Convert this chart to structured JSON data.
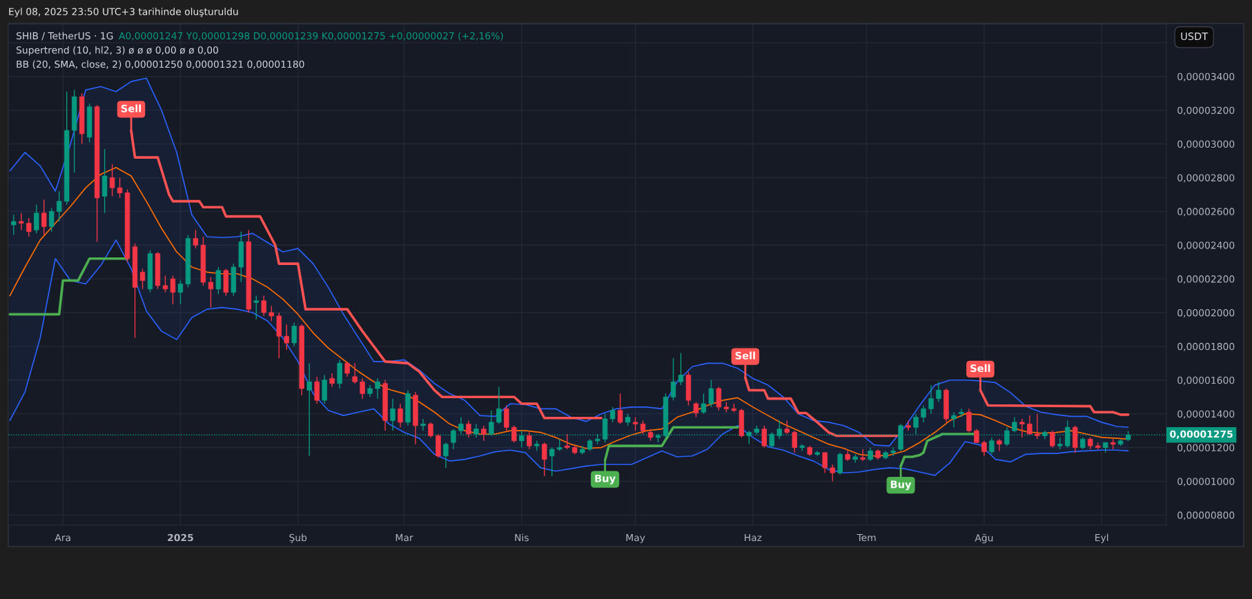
{
  "chart_data": {
    "type": "candlestick",
    "title": "SHIB / TetherUS · 1G",
    "subtitle": "A0,00001247 Y0,00001298 D0,00001239 K0,00001275 +0,00000027 (+2,16%)",
    "ylabel": "USDT",
    "x": [
      "2024-11-18",
      "2024-11-20",
      "2024-11-22",
      "2024-11-24",
      "2024-11-26",
      "2024-11-28",
      "2024-11-30",
      "2024-12-02",
      "2024-12-04",
      "2024-12-06",
      "2024-12-08",
      "2024-12-10",
      "2024-12-12",
      "2024-12-14",
      "2024-12-16",
      "2024-12-18",
      "2024-12-20",
      "2024-12-22",
      "2024-12-24",
      "2024-12-26",
      "2024-12-28",
      "2024-12-30",
      "2025-01-01",
      "2025-01-03",
      "2025-01-05",
      "2025-01-07",
      "2025-01-09",
      "2025-01-11",
      "2025-01-13",
      "2025-01-15",
      "2025-01-17",
      "2025-01-19",
      "2025-01-21",
      "2025-01-23",
      "2025-01-25",
      "2025-01-27",
      "2025-01-29",
      "2025-01-31",
      "2025-02-02",
      "2025-02-04",
      "2025-02-06",
      "2025-02-08",
      "2025-02-10",
      "2025-02-12",
      "2025-02-14",
      "2025-02-16",
      "2025-02-18",
      "2025-02-20",
      "2025-02-22",
      "2025-02-24",
      "2025-02-26",
      "2025-02-28",
      "2025-03-02",
      "2025-03-04",
      "2025-03-06",
      "2025-03-08",
      "2025-03-10",
      "2025-03-12",
      "2025-03-14",
      "2025-03-16",
      "2025-03-18",
      "2025-03-20",
      "2025-03-22",
      "2025-03-24",
      "2025-03-26",
      "2025-03-28",
      "2025-03-30",
      "2025-04-01",
      "2025-04-03",
      "2025-04-05",
      "2025-04-07",
      "2025-04-09",
      "2025-04-11",
      "2025-04-13",
      "2025-04-15",
      "2025-04-17",
      "2025-04-19",
      "2025-04-21",
      "2025-04-23",
      "2025-04-25",
      "2025-04-27",
      "2025-04-29",
      "2025-05-01",
      "2025-05-03",
      "2025-05-05",
      "2025-05-07",
      "2025-05-09",
      "2025-05-11",
      "2025-05-13",
      "2025-05-15",
      "2025-05-17",
      "2025-05-19",
      "2025-05-21",
      "2025-05-23",
      "2025-05-25",
      "2025-05-27",
      "2025-05-29",
      "2025-05-31",
      "2025-06-02",
      "2025-06-04",
      "2025-06-06",
      "2025-06-08",
      "2025-06-10",
      "2025-06-12",
      "2025-06-14",
      "2025-06-16",
      "2025-06-18",
      "2025-06-20",
      "2025-06-22",
      "2025-06-24",
      "2025-06-26",
      "2025-06-28",
      "2025-06-30",
      "2025-07-02",
      "2025-07-04",
      "2025-07-06",
      "2025-07-08",
      "2025-07-10",
      "2025-07-12",
      "2025-07-14",
      "2025-07-16",
      "2025-07-18",
      "2025-07-20",
      "2025-07-22",
      "2025-07-24",
      "2025-07-26",
      "2025-07-28",
      "2025-07-30",
      "2025-08-01",
      "2025-08-03",
      "2025-08-05",
      "2025-08-07",
      "2025-08-09",
      "2025-08-11",
      "2025-08-13",
      "2025-08-15",
      "2025-08-17",
      "2025-08-19",
      "2025-08-21",
      "2025-08-23",
      "2025-08-25",
      "2025-08-27",
      "2025-08-29",
      "2025-08-31",
      "2025-09-02",
      "2025-09-04",
      "2025-09-06",
      "2025-09-08"
    ],
    "ohlc": [
      [
        2.52e-05,
        2.58e-05,
        2.46e-05,
        2.54e-05
      ],
      [
        2.54e-05,
        2.59e-05,
        2.49e-05,
        2.53e-05
      ],
      [
        2.53e-05,
        2.56e-05,
        2.45e-05,
        2.48e-05
      ],
      [
        2.49e-05,
        2.64e-05,
        2.47e-05,
        2.59e-05
      ],
      [
        2.59e-05,
        2.67e-05,
        2.46e-05,
        2.51e-05
      ],
      [
        2.51e-05,
        2.62e-05,
        2.48e-05,
        2.6e-05
      ],
      [
        2.6e-05,
        2.72e-05,
        2.54e-05,
        2.66e-05
      ],
      [
        2.66e-05,
        3.31e-05,
        2.64e-05,
        3.08e-05
      ],
      [
        3.08e-05,
        3.32e-05,
        2.83e-05,
        3.28e-05
      ],
      [
        3.28e-05,
        3.3e-05,
        3e-05,
        3.06e-05
      ],
      [
        3.04e-05,
        3.24e-05,
        3.01e-05,
        3.22e-05
      ],
      [
        3.22e-05,
        3.23e-05,
        2.42e-05,
        2.68e-05
      ],
      [
        2.69e-05,
        2.97e-05,
        2.59e-05,
        2.81e-05
      ],
      [
        2.8e-05,
        2.88e-05,
        2.69e-05,
        2.74e-05
      ],
      [
        2.74e-05,
        2.8e-05,
        2.68e-05,
        2.71e-05
      ],
      [
        2.71e-05,
        2.73e-05,
        2.3e-05,
        2.32e-05
      ],
      [
        2.39e-05,
        2.41e-05,
        1.85e-05,
        2.15e-05
      ],
      [
        2.24e-05,
        2.26e-05,
        2.14e-05,
        2.19e-05
      ],
      [
        2.14e-05,
        2.37e-05,
        2.12e-05,
        2.35e-05
      ],
      [
        2.35e-05,
        2.36e-05,
        2.14e-05,
        2.16e-05
      ],
      [
        2.16e-05,
        2.22e-05,
        2.12e-05,
        2.14e-05
      ],
      [
        2.2e-05,
        2.22e-05,
        2.05e-05,
        2.12e-05
      ],
      [
        2.12e-05,
        2.19e-05,
        2.05e-05,
        2.17e-05
      ],
      [
        2.17e-05,
        2.46e-05,
        2.15e-05,
        2.44e-05
      ],
      [
        2.44e-05,
        2.49e-05,
        2.38e-05,
        2.4e-05
      ],
      [
        2.4e-05,
        2.45e-05,
        2.16e-05,
        2.18e-05
      ],
      [
        2.18e-05,
        2.21e-05,
        2.03e-05,
        2.14e-05
      ],
      [
        2.14e-05,
        2.27e-05,
        2.11e-05,
        2.25e-05
      ],
      [
        2.25e-05,
        2.26e-05,
        2.1e-05,
        2.12e-05
      ],
      [
        2.12e-05,
        2.29e-05,
        2.1e-05,
        2.27e-05
      ],
      [
        2.27e-05,
        2.48e-05,
        2.18e-05,
        2.42e-05
      ],
      [
        2.42e-05,
        2.49e-05,
        2e-05,
        2.02e-05
      ],
      [
        2.06e-05,
        2.1e-05,
        1.96e-05,
        2.07e-05
      ],
      [
        2.07e-05,
        2.1e-05,
        1.98e-05,
        2e-05
      ],
      [
        2e-05,
        2.04e-05,
        1.95e-05,
        1.98e-05
      ],
      [
        1.98e-05,
        2e-05,
        1.73e-05,
        1.86e-05
      ],
      [
        1.86e-05,
        1.93e-05,
        1.78e-05,
        1.82e-05
      ],
      [
        1.82e-05,
        1.94e-05,
        1.8e-05,
        1.92e-05
      ],
      [
        1.92e-05,
        1.93e-05,
        1.51e-05,
        1.55e-05
      ],
      [
        1.54e-05,
        1.7e-05,
        1.15e-05,
        1.59e-05
      ],
      [
        1.59e-05,
        1.62e-05,
        1.46e-05,
        1.48e-05
      ],
      [
        1.48e-05,
        1.63e-05,
        1.46e-05,
        1.6e-05
      ],
      [
        1.61e-05,
        1.64e-05,
        1.56e-05,
        1.58e-05
      ],
      [
        1.58e-05,
        1.72e-05,
        1.55e-05,
        1.7e-05
      ],
      [
        1.7e-05,
        1.71e-05,
        1.62e-05,
        1.64e-05
      ],
      [
        1.62e-05,
        1.7e-05,
        1.58e-05,
        1.59e-05
      ],
      [
        1.59e-05,
        1.61e-05,
        1.49e-05,
        1.52e-05
      ],
      [
        1.52e-05,
        1.57e-05,
        1.5e-05,
        1.55e-05
      ],
      [
        1.55e-05,
        1.61e-05,
        1.49e-05,
        1.59e-05
      ],
      [
        1.58e-05,
        1.6e-05,
        1.3e-05,
        1.36e-05
      ],
      [
        1.36e-05,
        1.49e-05,
        1.3e-05,
        1.43e-05
      ],
      [
        1.43e-05,
        1.46e-05,
        1.32e-05,
        1.35e-05
      ],
      [
        1.35e-05,
        1.54e-05,
        1.33e-05,
        1.52e-05
      ],
      [
        1.51e-05,
        1.53e-05,
        1.22e-05,
        1.33e-05
      ],
      [
        1.33e-05,
        1.37e-05,
        1.3e-05,
        1.34e-05
      ],
      [
        1.34e-05,
        1.35e-05,
        1.26e-05,
        1.27e-05
      ],
      [
        1.27e-05,
        1.28e-05,
        1.14e-05,
        1.15e-05
      ],
      [
        1.15e-05,
        1.23e-05,
        1.08e-05,
        1.22e-05
      ],
      [
        1.23e-05,
        1.31e-05,
        1.19e-05,
        1.3e-05
      ],
      [
        1.3e-05,
        1.38e-05,
        1.28e-05,
        1.34e-05
      ],
      [
        1.34e-05,
        1.36e-05,
        1.26e-05,
        1.28e-05
      ],
      [
        1.28e-05,
        1.34e-05,
        1.26e-05,
        1.31e-05
      ],
      [
        1.31e-05,
        1.33e-05,
        1.24e-05,
        1.28e-05
      ],
      [
        1.28e-05,
        1.42e-05,
        1.27e-05,
        1.35e-05
      ],
      [
        1.35e-05,
        1.56e-05,
        1.34e-05,
        1.43e-05
      ],
      [
        1.43e-05,
        1.45e-05,
        1.3e-05,
        1.32e-05
      ],
      [
        1.32e-05,
        1.33e-05,
        1.23e-05,
        1.24e-05
      ],
      [
        1.24e-05,
        1.3e-05,
        1.2e-05,
        1.27e-05
      ],
      [
        1.27e-05,
        1.29e-05,
        1.19e-05,
        1.21e-05
      ],
      [
        1.21e-05,
        1.24e-05,
        1.18e-05,
        1.22e-05
      ],
      [
        1.22e-05,
        1.23e-05,
        1.03e-05,
        1.13e-05
      ],
      [
        1.15e-05,
        1.2e-05,
        1.03e-05,
        1.19e-05
      ],
      [
        1.19e-05,
        1.25e-05,
        1.18e-05,
        1.2e-05
      ],
      [
        1.21e-05,
        1.28e-05,
        1.19e-05,
        1.2e-05
      ],
      [
        1.2e-05,
        1.21e-05,
        1.16e-05,
        1.17e-05
      ],
      [
        1.17e-05,
        1.21e-05,
        1.16e-05,
        1.19e-05
      ],
      [
        1.19e-05,
        1.25e-05,
        1.18e-05,
        1.24e-05
      ],
      [
        1.24e-05,
        1.28e-05,
        1.22e-05,
        1.25e-05
      ],
      [
        1.25e-05,
        1.4e-05,
        1.23e-05,
        1.37e-05
      ],
      [
        1.37e-05,
        1.44e-05,
        1.35e-05,
        1.42e-05
      ],
      [
        1.42e-05,
        1.52e-05,
        1.34e-05,
        1.35e-05
      ],
      [
        1.35e-05,
        1.4e-05,
        1.33e-05,
        1.38e-05
      ],
      [
        1.35e-05,
        1.38e-05,
        1.3e-05,
        1.34e-05
      ],
      [
        1.34e-05,
        1.36e-05,
        1.28e-05,
        1.3e-05
      ],
      [
        1.29e-05,
        1.31e-05,
        1.24e-05,
        1.26e-05
      ],
      [
        1.26e-05,
        1.28e-05,
        1.23e-05,
        1.27e-05
      ],
      [
        1.27e-05,
        1.52e-05,
        1.26e-05,
        1.5e-05
      ],
      [
        1.5e-05,
        1.73e-05,
        1.48e-05,
        1.59e-05
      ],
      [
        1.59e-05,
        1.76e-05,
        1.57e-05,
        1.63e-05
      ],
      [
        1.63e-05,
        1.65e-05,
        1.45e-05,
        1.48e-05
      ],
      [
        1.46e-05,
        1.47e-05,
        1.38e-05,
        1.405e-05
      ],
      [
        1.41e-05,
        1.52e-05,
        1.4e-05,
        1.46e-05
      ],
      [
        1.46e-05,
        1.6e-05,
        1.44e-05,
        1.55e-05
      ],
      [
        1.55e-05,
        1.56e-05,
        1.42e-05,
        1.44e-05
      ],
      [
        1.44e-05,
        1.47e-05,
        1.41e-05,
        1.43e-05
      ],
      [
        1.43e-05,
        1.46e-05,
        1.41e-05,
        1.42e-05
      ],
      [
        1.42e-05,
        1.43e-05,
        1.26e-05,
        1.27e-05
      ],
      [
        1.27e-05,
        1.3e-05,
        1.22e-05,
        1.29e-05
      ],
      [
        1.29e-05,
        1.33e-05,
        1.28e-05,
        1.31e-05
      ],
      [
        1.31e-05,
        1.33e-05,
        1.2e-05,
        1.21e-05
      ],
      [
        1.21e-05,
        1.29e-05,
        1.2e-05,
        1.28e-05
      ],
      [
        1.27e-05,
        1.36e-05,
        1.25e-05,
        1.31e-05
      ],
      [
        1.31e-05,
        1.36e-05,
        1.28e-05,
        1.29e-05
      ],
      [
        1.29e-05,
        1.3e-05,
        1.17e-05,
        1.2e-05
      ],
      [
        1.2e-05,
        1.22e-05,
        1.18e-05,
        1.21e-05
      ],
      [
        1.2e-05,
        1.21e-05,
        1.15e-05,
        1.16e-05
      ],
      [
        1.16e-05,
        1.18e-05,
        1.15e-05,
        1.17e-05
      ],
      [
        1.17e-05,
        1.17e-05,
        1.05e-05,
        1.08e-05
      ],
      [
        1.08e-05,
        1.1e-05,
        1e-05,
        1.05e-05
      ],
      [
        1.05e-05,
        1.17e-05,
        1.04e-05,
        1.16e-05
      ],
      [
        1.16e-05,
        1.18e-05,
        1.12e-05,
        1.13e-05
      ],
      [
        1.13e-05,
        1.16e-05,
        1.11e-05,
        1.145e-05
      ],
      [
        1.14e-05,
        1.19e-05,
        1.12e-05,
        1.13e-05
      ],
      [
        1.13e-05,
        1.2e-05,
        1.12e-05,
        1.18e-05
      ],
      [
        1.18e-05,
        1.19e-05,
        1.13e-05,
        1.14e-05
      ],
      [
        1.14e-05,
        1.18e-05,
        1.13e-05,
        1.17e-05
      ],
      [
        1.17e-05,
        1.2e-05,
        1.15e-05,
        1.18e-05
      ],
      [
        1.19e-05,
        1.34e-05,
        1.18e-05,
        1.33e-05
      ],
      [
        1.33e-05,
        1.36e-05,
        1.3e-05,
        1.32e-05
      ],
      [
        1.32e-05,
        1.4e-05,
        1.28e-05,
        1.38e-05
      ],
      [
        1.38e-05,
        1.45e-05,
        1.35e-05,
        1.43e-05
      ],
      [
        1.43e-05,
        1.57e-05,
        1.4e-05,
        1.49e-05
      ],
      [
        1.49e-05,
        1.59e-05,
        1.47e-05,
        1.54e-05
      ],
      [
        1.54e-05,
        1.55e-05,
        1.35e-05,
        1.37e-05
      ],
      [
        1.37e-05,
        1.41e-05,
        1.32e-05,
        1.39e-05
      ],
      [
        1.4e-05,
        1.43e-05,
        1.38e-05,
        1.41e-05
      ],
      [
        1.41e-05,
        1.43e-05,
        1.29e-05,
        1.3e-05
      ],
      [
        1.3e-05,
        1.31e-05,
        1.23e-05,
        1.23e-05
      ],
      [
        1.23e-05,
        1.24e-05,
        1.15e-05,
        1.175e-05
      ],
      [
        1.175e-05,
        1.26e-05,
        1.16e-05,
        1.24e-05
      ],
      [
        1.24e-05,
        1.25e-05,
        1.18e-05,
        1.22e-05
      ],
      [
        1.22e-05,
        1.32e-05,
        1.21e-05,
        1.3e-05
      ],
      [
        1.3e-05,
        1.38e-05,
        1.29e-05,
        1.35e-05
      ],
      [
        1.35e-05,
        1.37e-05,
        1.26e-05,
        1.34e-05
      ],
      [
        1.34e-05,
        1.39e-05,
        1.28e-05,
        1.28e-05
      ],
      [
        1.28e-05,
        1.4e-05,
        1.25e-05,
        1.27e-05
      ],
      [
        1.27e-05,
        1.3e-05,
        1.25e-05,
        1.29e-05
      ],
      [
        1.29e-05,
        1.3e-05,
        1.2e-05,
        1.21e-05
      ],
      [
        1.21e-05,
        1.26e-05,
        1.19e-05,
        1.22e-05
      ],
      [
        1.21e-05,
        1.36e-05,
        1.2e-05,
        1.32e-05
      ],
      [
        1.32e-05,
        1.33e-05,
        1.17e-05,
        1.2e-05
      ],
      [
        1.2e-05,
        1.26e-05,
        1.19e-05,
        1.25e-05
      ],
      [
        1.25e-05,
        1.26e-05,
        1.19e-05,
        1.21e-05
      ],
      [
        1.21e-05,
        1.23e-05,
        1.19e-05,
        1.2e-05
      ],
      [
        1.2e-05,
        1.23e-05,
        1.17e-05,
        1.23e-05
      ],
      [
        1.23e-05,
        1.25e-05,
        1.19e-05,
        1.22e-05
      ],
      [
        1.22e-05,
        1.25e-05,
        1.21e-05,
        1.24e-05
      ],
      [
        1.247e-05,
        1.298e-05,
        1.239e-05,
        1.275e-05
      ]
    ],
    "series": [
      {
        "type": "line",
        "color": "#ff6d00",
        "x": [
          "2024-11-17",
          "2024-11-21",
          "2024-11-25",
          "2024-11-29",
          "2024-12-03",
          "2024-12-07",
          "2024-12-11",
          "2024-12-15",
          "2024-12-19",
          "2024-12-23",
          "2024-12-27",
          "2024-12-31",
          "2025-01-04",
          "2025-01-08",
          "2025-01-12",
          "2025-01-16",
          "2025-01-20",
          "2025-01-24",
          "2025-01-28",
          "2025-02-01",
          "2025-02-05",
          "2025-02-09",
          "2025-02-13",
          "2025-02-17",
          "2025-02-21",
          "2025-02-25",
          "2025-03-01",
          "2025-03-05",
          "2025-03-09",
          "2025-03-13",
          "2025-03-17",
          "2025-03-21",
          "2025-03-25",
          "2025-03-29",
          "2025-04-02",
          "2025-04-06",
          "2025-04-10",
          "2025-04-14",
          "2025-04-18",
          "2025-04-22",
          "2025-04-26",
          "2025-04-30",
          "2025-05-04",
          "2025-05-08",
          "2025-05-12",
          "2025-05-16",
          "2025-05-20",
          "2025-05-24",
          "2025-05-28",
          "2025-06-01",
          "2025-06-05",
          "2025-06-09",
          "2025-06-13",
          "2025-06-17",
          "2025-06-21",
          "2025-06-25",
          "2025-06-29",
          "2025-07-03",
          "2025-07-07",
          "2025-07-11",
          "2025-07-15",
          "2025-07-19",
          "2025-07-23",
          "2025-07-27",
          "2025-07-31",
          "2025-08-04",
          "2025-08-08",
          "2025-08-12",
          "2025-08-16",
          "2025-08-20",
          "2025-08-24",
          "2025-08-28",
          "2025-09-01",
          "2025-09-05",
          "2025-09-08"
        ],
        "values": [
          2.1e-05,
          2.27e-05,
          2.43e-05,
          2.53e-05,
          2.63e-05,
          2.74e-05,
          2.82e-05,
          2.86e-05,
          2.81e-05,
          2.66e-05,
          2.5e-05,
          2.36e-05,
          2.27e-05,
          2.24e-05,
          2.23e-05,
          2.23e-05,
          2.2e-05,
          2.15e-05,
          2.08e-05,
          1.99e-05,
          1.88e-05,
          1.79e-05,
          1.72e-05,
          1.65e-05,
          1.59e-05,
          1.545e-05,
          1.52e-05,
          1.47e-05,
          1.41e-05,
          1.34e-05,
          1.3e-05,
          1.28e-05,
          1.28e-05,
          1.3e-05,
          1.3e-05,
          1.29e-05,
          1.26e-05,
          1.22e-05,
          1.195e-05,
          1.2e-05,
          1.24e-05,
          1.275e-05,
          1.3e-05,
          1.31e-05,
          1.38e-05,
          1.41e-05,
          1.45e-05,
          1.48e-05,
          1.495e-05,
          1.44e-05,
          1.39e-05,
          1.34e-05,
          1.3e-05,
          1.26e-05,
          1.22e-05,
          1.195e-05,
          1.16e-05,
          1.15e-05,
          1.155e-05,
          1.18e-05,
          1.23e-05,
          1.29e-05,
          1.36e-05,
          1.4e-05,
          1.395e-05,
          1.36e-05,
          1.32e-05,
          1.295e-05,
          1.285e-05,
          1.29e-05,
          1.3e-05,
          1.28e-05,
          1.26e-05,
          1.255e-05,
          1.25e-05
        ],
        "lower": [
          1.36e-05,
          1.53e-05,
          1.85e-05,
          2.32e-05,
          2.19e-05,
          2.17e-05,
          2.28e-05,
          2.43e-05,
          2.26e-05,
          2.01e-05,
          1.89e-05,
          1.84e-05,
          1.97e-05,
          2.02e-05,
          2.03e-05,
          2.02e-05,
          2e-05,
          1.95e-05,
          1.85e-05,
          1.71e-05,
          1.52e-05,
          1.42e-05,
          1.39e-05,
          1.41e-05,
          1.43e-05,
          1.34e-05,
          1.29e-05,
          1.255e-05,
          1.16e-05,
          1.12e-05,
          1.13e-05,
          1.15e-05,
          1.175e-05,
          1.185e-05,
          1.17e-05,
          1.08e-05,
          1.06e-05,
          1.075e-05,
          1.09e-05,
          1.1e-05,
          1.1e-05,
          1.1e-05,
          1.14e-05,
          1.18e-05,
          1.145e-05,
          1.15e-05,
          1.19e-05,
          1.28e-05,
          1.33e-05,
          1.26e-05,
          1.205e-05,
          1.185e-05,
          1.15e-05,
          1.12e-05,
          1.07e-05,
          1.05e-05,
          1.055e-05,
          1.07e-05,
          1.08e-05,
          1.075e-05,
          1.055e-05,
          1.035e-05,
          1.11e-05,
          1.235e-05,
          1.215e-05,
          1.13e-05,
          1.115e-05,
          1.16e-05,
          1.165e-05,
          1.165e-05,
          1.175e-05,
          1.18e-05,
          1.185e-05,
          1.185e-05,
          1.18e-05
        ],
        "upper": [
          2.84e-05,
          2.95e-05,
          2.87e-05,
          2.72e-05,
          3e-05,
          3.32e-05,
          3.34e-05,
          3.31e-05,
          3.37e-05,
          3.39e-05,
          3.2e-05,
          2.95e-05,
          2.58e-05,
          2.45e-05,
          2.445e-05,
          2.45e-05,
          2.47e-05,
          2.415e-05,
          2.36e-05,
          2.38e-05,
          2.29e-05,
          2.15e-05,
          1.99e-05,
          1.85e-05,
          1.71e-05,
          1.71e-05,
          1.72e-05,
          1.66e-05,
          1.58e-05,
          1.52e-05,
          1.48e-05,
          1.39e-05,
          1.385e-05,
          1.46e-05,
          1.455e-05,
          1.43e-05,
          1.43e-05,
          1.38e-05,
          1.355e-05,
          1.4e-05,
          1.43e-05,
          1.44e-05,
          1.44e-05,
          1.43e-05,
          1.59e-05,
          1.68e-05,
          1.7e-05,
          1.7e-05,
          1.67e-05,
          1.61e-05,
          1.57e-05,
          1.5e-05,
          1.4e-05,
          1.36e-05,
          1.35e-05,
          1.33e-05,
          1.29e-05,
          1.215e-05,
          1.21e-05,
          1.32e-05,
          1.45e-05,
          1.57e-05,
          1.6e-05,
          1.6e-05,
          1.595e-05,
          1.585e-05,
          1.525e-05,
          1.445e-05,
          1.41e-05,
          1.395e-05,
          1.385e-05,
          1.385e-05,
          1.35e-05,
          1.325e-05,
          1.321e-05
        ]
      },
      {
        "type": "line",
        "color": "#2962ff",
        "x": [
          "2024-11-17",
          "2024-11-21",
          "2024-11-25",
          "2024-11-29",
          "2024-12-03",
          "2024-12-07",
          "2024-12-11",
          "2024-12-15",
          "2024-12-19",
          "2024-12-23",
          "2024-12-27",
          "2024-12-31",
          "2025-01-04",
          "2025-01-08",
          "2025-01-12",
          "2025-01-16",
          "2025-01-20",
          "2025-01-24",
          "2025-01-28",
          "2025-02-01",
          "2025-02-05",
          "2025-02-09",
          "2025-02-13",
          "2025-02-17",
          "2025-02-21",
          "2025-02-25",
          "2025-03-01",
          "2025-03-05",
          "2025-03-09",
          "2025-03-13",
          "2025-03-17",
          "2025-03-21",
          "2025-03-25",
          "2025-03-29",
          "2025-04-02",
          "2025-04-06",
          "2025-04-10",
          "2025-04-14",
          "2025-04-18",
          "2025-04-22",
          "2025-04-26",
          "2025-04-30",
          "2025-05-04",
          "2025-05-08",
          "2025-05-12",
          "2025-05-16",
          "2025-05-20",
          "2025-05-24",
          "2025-05-28",
          "2025-06-01",
          "2025-06-05",
          "2025-06-09",
          "2025-06-13",
          "2025-06-17",
          "2025-06-21",
          "2025-06-25",
          "2025-06-29",
          "2025-07-03",
          "2025-07-07",
          "2025-07-11",
          "2025-07-15",
          "2025-07-19",
          "2025-07-23",
          "2025-07-27",
          "2025-07-31",
          "2025-08-04",
          "2025-08-08",
          "2025-08-12",
          "2025-08-16",
          "2025-08-20",
          "2025-08-24",
          "2025-08-28",
          "2025-09-01",
          "2025-09-05",
          "2025-09-08"
        ],
        "values": [
          2.84e-05,
          2.95e-05,
          2.87e-05,
          2.72e-05,
          3e-05,
          3.32e-05,
          3.34e-05,
          3.31e-05,
          3.37e-05,
          3.39e-05,
          3.2e-05,
          2.95e-05,
          2.58e-05,
          2.45e-05,
          2.445e-05,
          2.45e-05,
          2.47e-05,
          2.415e-05,
          2.36e-05,
          2.38e-05,
          2.29e-05,
          2.15e-05,
          1.99e-05,
          1.85e-05,
          1.71e-05,
          1.71e-05,
          1.72e-05,
          1.66e-05,
          1.58e-05,
          1.52e-05,
          1.48e-05,
          1.39e-05,
          1.385e-05,
          1.46e-05,
          1.455e-05,
          1.43e-05,
          1.43e-05,
          1.38e-05,
          1.355e-05,
          1.4e-05,
          1.43e-05,
          1.44e-05,
          1.44e-05,
          1.43e-05,
          1.59e-05,
          1.68e-05,
          1.7e-05,
          1.7e-05,
          1.67e-05,
          1.61e-05,
          1.57e-05,
          1.5e-05,
          1.4e-05,
          1.36e-05,
          1.35e-05,
          1.33e-05,
          1.29e-05,
          1.215e-05,
          1.21e-05,
          1.32e-05,
          1.45e-05,
          1.57e-05,
          1.6e-05,
          1.6e-05,
          1.595e-05,
          1.585e-05,
          1.525e-05,
          1.445e-05,
          1.41e-05,
          1.395e-05,
          1.385e-05,
          1.385e-05,
          1.35e-05,
          1.325e-05,
          1.321e-05
        ]
      },
      {
        "type": "line",
        "color": "#2962ff",
        "x": [
          "2024-11-17",
          "2024-11-21",
          "2024-11-25",
          "2024-11-29",
          "2024-12-03",
          "2024-12-07",
          "2024-12-11",
          "2024-12-15",
          "2024-12-19",
          "2024-12-23",
          "2024-12-27",
          "2024-12-31",
          "2025-01-04",
          "2025-01-08",
          "2025-01-12",
          "2025-01-16",
          "2025-01-20",
          "2025-01-24",
          "2025-01-28",
          "2025-02-01",
          "2025-02-05",
          "2025-02-09",
          "2025-02-13",
          "2025-02-17",
          "2025-02-21",
          "2025-02-25",
          "2025-03-01",
          "2025-03-05",
          "2025-03-09",
          "2025-03-13",
          "2025-03-17",
          "2025-03-21",
          "2025-03-25",
          "2025-03-29",
          "2025-04-02",
          "2025-04-06",
          "2025-04-10",
          "2025-04-14",
          "2025-04-18",
          "2025-04-22",
          "2025-04-26",
          "2025-04-30",
          "2025-05-04",
          "2025-05-08",
          "2025-05-12",
          "2025-05-16",
          "2025-05-20",
          "2025-05-24",
          "2025-05-28",
          "2025-06-01",
          "2025-06-05",
          "2025-06-09",
          "2025-06-13",
          "2025-06-17",
          "2025-06-21",
          "2025-06-25",
          "2025-06-29",
          "2025-07-03",
          "2025-07-07",
          "2025-07-11",
          "2025-07-15",
          "2025-07-19",
          "2025-07-23",
          "2025-07-27",
          "2025-07-31",
          "2025-08-04",
          "2025-08-08",
          "2025-08-12",
          "2025-08-16",
          "2025-08-20",
          "2025-08-24",
          "2025-08-28",
          "2025-09-01",
          "2025-09-05",
          "2025-09-08"
        ],
        "values": [
          1.36e-05,
          1.53e-05,
          1.85e-05,
          2.32e-05,
          2.19e-05,
          2.17e-05,
          2.28e-05,
          2.43e-05,
          2.26e-05,
          2.01e-05,
          1.89e-05,
          1.84e-05,
          1.97e-05,
          2.02e-05,
          2.03e-05,
          2.02e-05,
          2e-05,
          1.95e-05,
          1.85e-05,
          1.71e-05,
          1.52e-05,
          1.42e-05,
          1.39e-05,
          1.41e-05,
          1.43e-05,
          1.34e-05,
          1.29e-05,
          1.255e-05,
          1.16e-05,
          1.12e-05,
          1.13e-05,
          1.15e-05,
          1.175e-05,
          1.185e-05,
          1.17e-05,
          1.08e-05,
          1.06e-05,
          1.075e-05,
          1.09e-05,
          1.1e-05,
          1.1e-05,
          1.1e-05,
          1.14e-05,
          1.18e-05,
          1.145e-05,
          1.15e-05,
          1.19e-05,
          1.28e-05,
          1.33e-05,
          1.26e-05,
          1.205e-05,
          1.185e-05,
          1.15e-05,
          1.12e-05,
          1.07e-05,
          1.05e-05,
          1.055e-05,
          1.07e-05,
          1.08e-05,
          1.075e-05,
          1.055e-05,
          1.035e-05,
          1.11e-05,
          1.235e-05,
          1.215e-05,
          1.13e-05,
          1.115e-05,
          1.16e-05,
          1.165e-05,
          1.165e-05,
          1.175e-05,
          1.18e-05,
          1.185e-05,
          1.185e-05,
          1.18e-05
        ]
      },
      {
        "type": "line",
        "color": "#4caf50",
        "x": [
          "2024-11-17",
          "2024-11-30",
          "2024-12-01",
          "2024-12-05",
          "2024-12-08",
          "2024-12-18",
          "2024-12-19",
          "2025-04-23",
          "2025-04-24",
          "2025-05-08",
          "2025-05-11",
          "2025-05-28",
          "2025-05-30",
          "2025-07-10",
          "2025-07-11",
          "2025-07-13",
          "2025-07-15",
          "2025-07-16",
          "2025-07-17",
          "2025-07-18",
          "2025-07-21",
          "2025-07-30"
        ],
        "values": [
          1.99e-05,
          1.99e-05,
          2.19e-05,
          2.19e-05,
          2.32e-05,
          2.32e-05,
          null,
          1.125e-05,
          1.21e-05,
          1.21e-05,
          1.32e-05,
          1.32e-05,
          null,
          1.09e-05,
          1.145e-05,
          1.145e-05,
          1.155e-05,
          1.17e-05,
          1.24e-05,
          1.25e-05,
          1.28e-05,
          1.28e-05
        ]
      },
      {
        "type": "line",
        "color": "#ff5252",
        "x": [
          "2024-12-19",
          "2024-12-20",
          "2024-12-26",
          "2024-12-29",
          "2024-12-30",
          "2025-01-06",
          "2025-01-07",
          "2025-01-12",
          "2025-01-13",
          "2025-01-22",
          "2025-01-26",
          "2025-01-27",
          "2025-02-01",
          "2025-02-03",
          "2025-02-14",
          "2025-02-18",
          "2025-02-24",
          "2025-03-02",
          "2025-03-05",
          "2025-03-09",
          "2025-03-11",
          "2025-03-30",
          "2025-04-01",
          "2025-04-05",
          "2025-04-07",
          "2025-04-22",
          "2025-04-23",
          "2025-05-30",
          "2025-05-31",
          "2025-06-04",
          "2025-06-05",
          "2025-06-11",
          "2025-06-13",
          "2025-06-15",
          "2025-06-18",
          "2025-06-21",
          "2025-06-23",
          "2025-07-09",
          "2025-07-10",
          "2025-07-31",
          "2025-08-02",
          "2025-08-29",
          "2025-08-30",
          "2025-09-04",
          "2025-09-06",
          "2025-09-08"
        ],
        "values": [
          3.08e-05,
          2.92e-05,
          2.92e-05,
          2.7e-05,
          2.66e-05,
          2.66e-05,
          2.625e-05,
          2.625e-05,
          2.57e-05,
          2.57e-05,
          2.4e-05,
          2.29e-05,
          2.29e-05,
          2.02e-05,
          2.02e-05,
          1.89e-05,
          1.71e-05,
          1.7e-05,
          1.65e-05,
          1.54e-05,
          1.5e-05,
          1.5e-05,
          1.46e-05,
          1.46e-05,
          1.375e-05,
          1.375e-05,
          null,
          1.615e-05,
          1.54e-05,
          1.54e-05,
          1.49e-05,
          1.49e-05,
          1.405e-05,
          1.405e-05,
          1.35e-05,
          1.29e-05,
          1.27e-05,
          1.27e-05,
          null,
          1.54e-05,
          1.45e-05,
          1.445e-05,
          1.41e-05,
          1.41e-05,
          1.395e-05,
          1.395e-05
        ]
      }
    ],
    "xlim": [
      "2024-11-16T14:00",
      "2025-09-18T02:00"
    ],
    "xticks": [
      {
        "value": "2024-12-01",
        "label": "Ara"
      },
      {
        "value": "2025-01-01",
        "label": "2025"
      },
      {
        "value": "2025-02-01",
        "label": "Şub"
      },
      {
        "value": "2025-03-01",
        "label": "Mar"
      },
      {
        "value": "2025-04-01",
        "label": "Nis"
      },
      {
        "value": "2025-05-01",
        "label": "May"
      },
      {
        "value": "2025-06-01",
        "label": "Haz"
      },
      {
        "value": "2025-07-01",
        "label": "Tem"
      },
      {
        "value": "2025-08-01",
        "label": "Ağu"
      },
      {
        "value": "2025-09-01",
        "label": "Eyl"
      }
    ],
    "ylim": [
      7.4e-06,
      3.71e-05
    ],
    "yticks": [
      {
        "value": 8e-06,
        "label": "0,00000800"
      },
      {
        "value": 1e-05,
        "label": "0,00001000"
      },
      {
        "value": 1.2e-05,
        "label": "0,00001200"
      },
      {
        "value": 1.4e-05,
        "label": "0,00001400"
      },
      {
        "value": 1.6e-05,
        "label": "0,00001600"
      },
      {
        "value": 1.8e-05,
        "label": "0,00001800"
      },
      {
        "value": 2e-05,
        "label": "0,00002000"
      },
      {
        "value": 2.2e-05,
        "label": "0,00002200"
      },
      {
        "value": 2.4e-05,
        "label": "0,00002400"
      },
      {
        "value": 2.6e-05,
        "label": "0,00002600"
      },
      {
        "value": 2.8e-05,
        "label": "0,00002800"
      },
      {
        "value": 3e-05,
        "label": "0,00003000"
      },
      {
        "value": 3.2e-05,
        "label": "0,00003200"
      },
      {
        "value": 3.4e-05,
        "label": "0,00003400"
      },
      {
        "value": 3.6e-05,
        "label": null
      }
    ],
    "grid": true,
    "ref_lines": [
      {
        "axis": "y",
        "value": 1.275e-05,
        "label": "0,00001275",
        "color": "#089981",
        "line_style": "dotted"
      }
    ],
    "annotations": [
      "Supertrend (10, hl2, 3) ø ø ø 0,00 ø ø 0,00",
      "BB (20, SMA, close, 2) 0,00001250 0,00001321 0,00001180",
      "Eyl 08, 2025 23:50 UTC+3 tarihinde oluşturuldu",
      {
        "text": "Sell",
        "x": "2024-12-19",
        "y": 3.08e-05
      },
      {
        "text": "Buy",
        "x": "2025-04-23",
        "y": 1.125e-05
      },
      {
        "text": "Sell",
        "x": "2025-05-30",
        "y": 1.615e-05
      },
      {
        "text": "Buy",
        "x": "2025-07-10",
        "y": 1.09e-05
      },
      {
        "text": "Sell",
        "x": "2025-07-31",
        "y": 1.54e-05
      }
    ]
  }
}
